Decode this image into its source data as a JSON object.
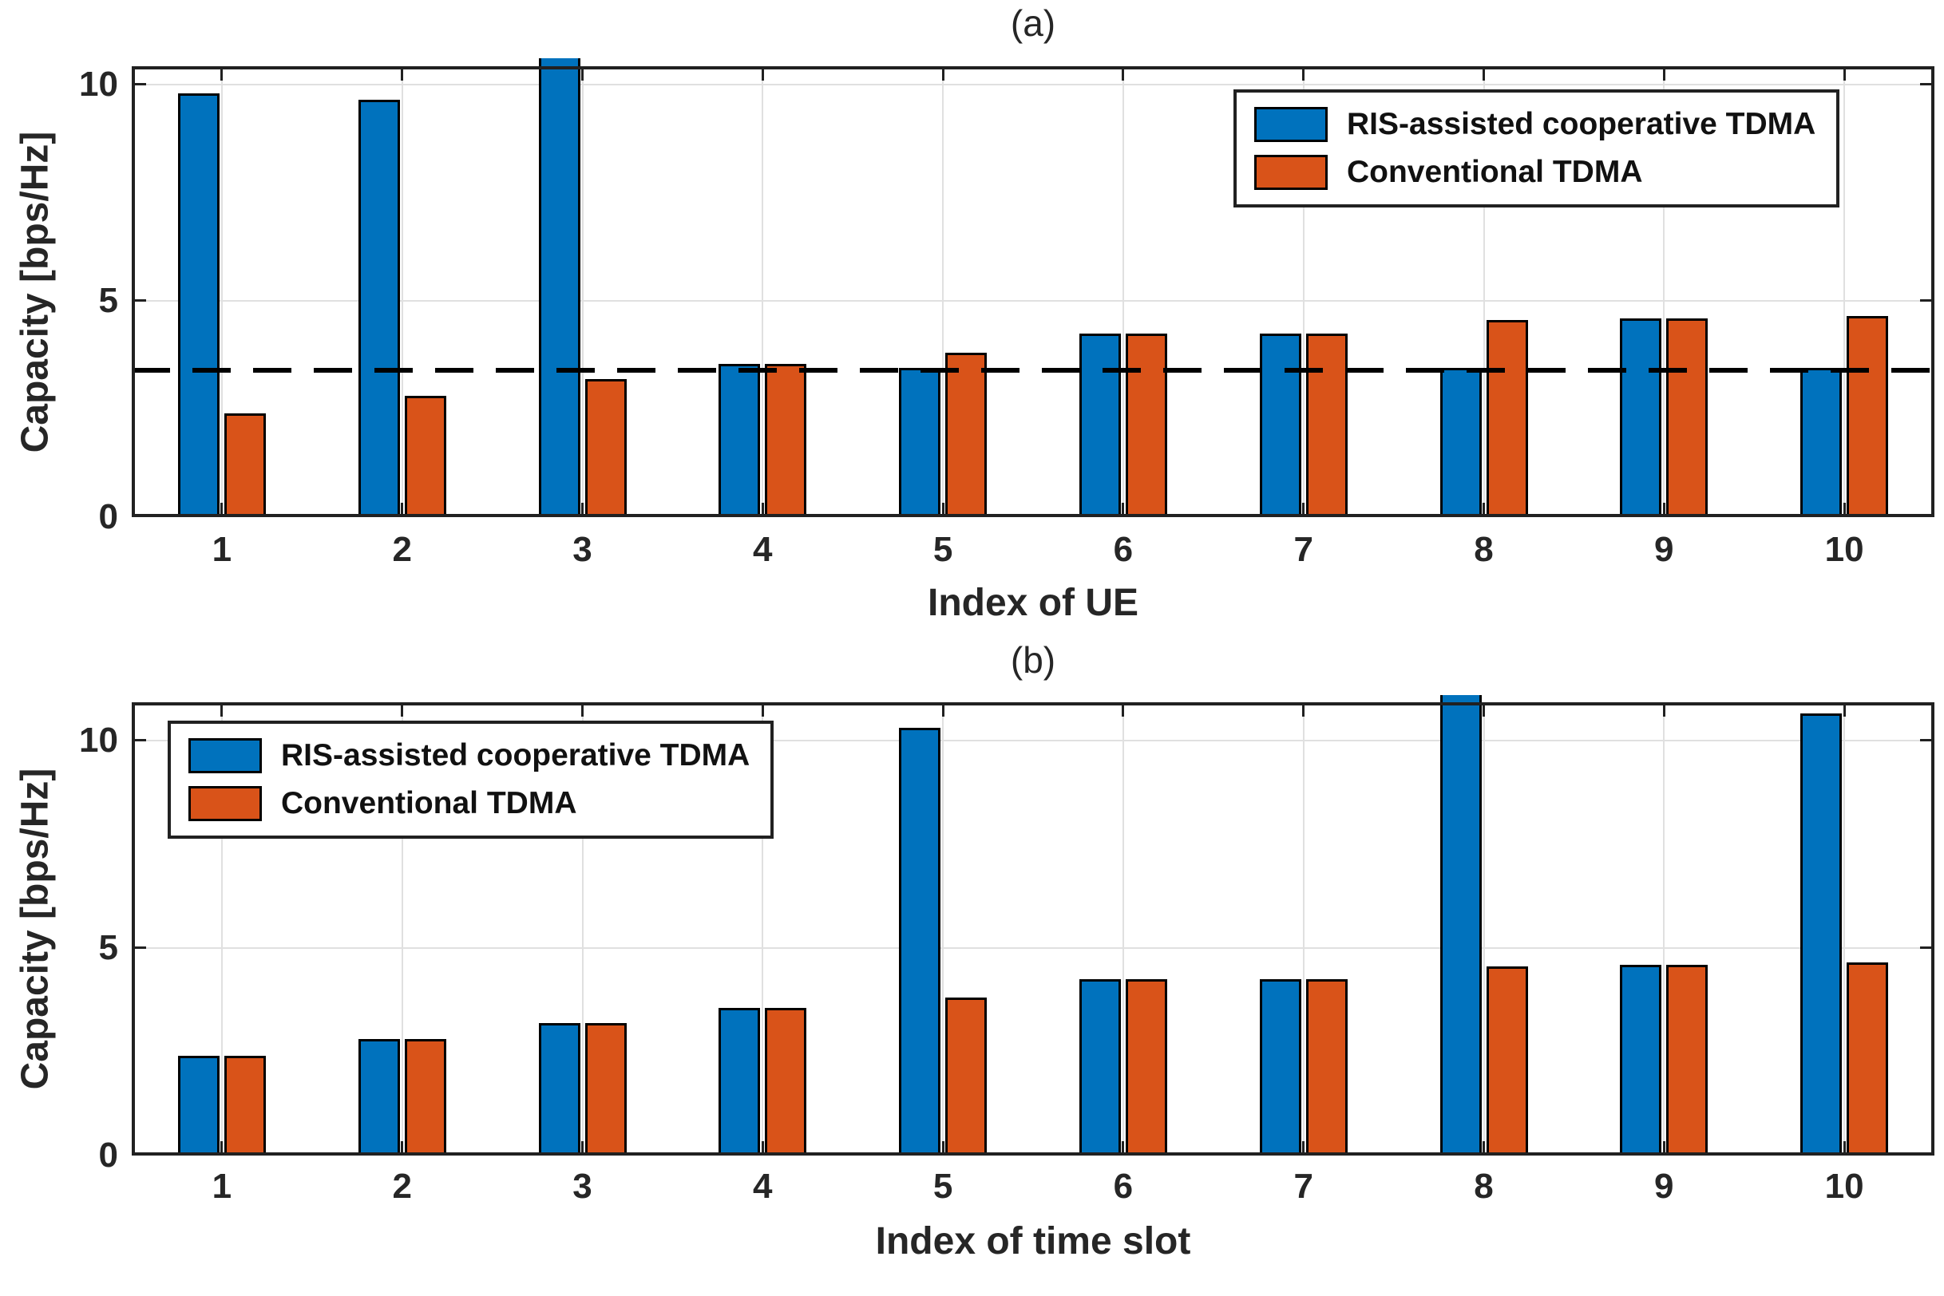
{
  "figure": {
    "background": "#ffffff",
    "ylabel": "Capacity [bps/Hz]"
  },
  "colors": {
    "ris_blue": "#0072BD",
    "conventional_orange": "#D95319",
    "axis": "#212121",
    "grid": "#e0e0e0",
    "dashed_line": "#000000",
    "bar_edge": "#000000"
  },
  "legend": {
    "items": [
      {
        "name": "ris",
        "label": "RIS-assisted cooperative TDMA",
        "color": "#0072BD"
      },
      {
        "name": "conventional",
        "label": "Conventional TDMA",
        "color": "#D95319"
      }
    ]
  },
  "chart_data": [
    {
      "id": "a",
      "type": "bar",
      "title": "(a)",
      "xlabel": "Index of UE",
      "ylabel": "Capacity [bps/Hz]",
      "categories": [
        "1",
        "2",
        "3",
        "4",
        "5",
        "6",
        "7",
        "8",
        "9",
        "10"
      ],
      "series": [
        {
          "name": "RIS-assisted cooperative TDMA",
          "color": "#0072BD",
          "values": [
            9.8,
            9.65,
            10.6,
            3.55,
            3.45,
            4.25,
            4.25,
            3.45,
            4.6,
            3.45
          ]
        },
        {
          "name": "Conventional TDMA",
          "color": "#D95319",
          "values": [
            2.4,
            2.8,
            3.2,
            3.55,
            3.8,
            4.25,
            4.25,
            4.55,
            4.6,
            4.65
          ]
        }
      ],
      "ylim": [
        0,
        10.42
      ],
      "yticks": [
        0,
        5,
        10
      ],
      "grid": true,
      "dashed_line_y": 3.4,
      "legend_position": "top-right"
    },
    {
      "id": "b",
      "type": "bar",
      "title": "(b)",
      "xlabel": "Index of time slot",
      "ylabel": "Capacity [bps/Hz]",
      "categories": [
        "1",
        "2",
        "3",
        "4",
        "5",
        "6",
        "7",
        "8",
        "9",
        "10"
      ],
      "series": [
        {
          "name": "RIS-assisted cooperative TDMA",
          "color": "#0072BD",
          "values": [
            2.4,
            2.8,
            3.2,
            3.55,
            10.3,
            4.25,
            4.25,
            11.1,
            4.6,
            10.65
          ]
        },
        {
          "name": "Conventional TDMA",
          "color": "#D95319",
          "values": [
            2.4,
            2.8,
            3.2,
            3.55,
            3.8,
            4.25,
            4.25,
            4.55,
            4.6,
            4.65
          ]
        }
      ],
      "ylim": [
        0,
        10.92
      ],
      "yticks": [
        0,
        5,
        10
      ],
      "grid": true,
      "dashed_line_y": null,
      "legend_position": "top-left"
    }
  ]
}
